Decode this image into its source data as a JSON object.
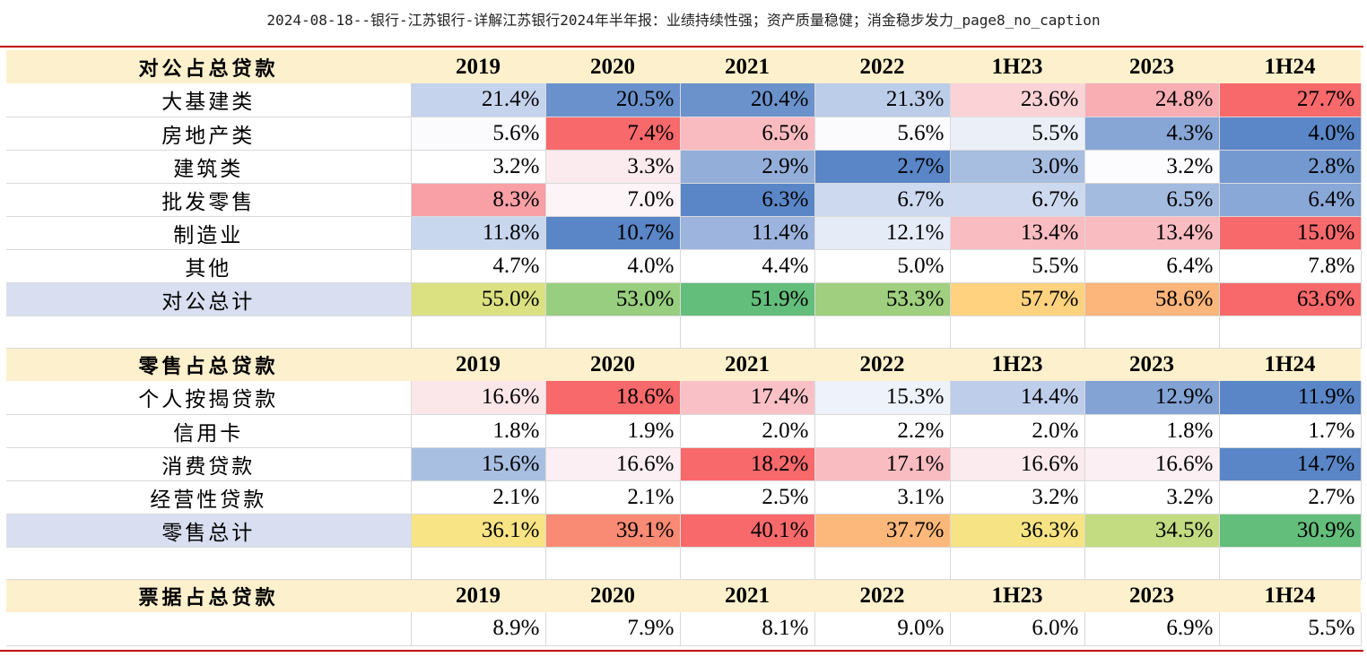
{
  "page_title": "2024-08-18--银行-江苏银行-详解江苏银行2024年半年报：业绩持续性强；资产质量稳健；消金稳步发力_page8_no_caption",
  "years": [
    "2019",
    "2020",
    "2021",
    "2022",
    "1H23",
    "2023",
    "1H24"
  ],
  "sections": [
    {
      "header": "对公占总贷款",
      "rows": [
        {
          "label": "大基建类",
          "values": [
            "21.4%",
            "20.5%",
            "20.4%",
            "21.3%",
            "23.6%",
            "24.8%",
            "27.7%"
          ],
          "colors": [
            "#c5d3ec",
            "#6a91cc",
            "#6c92cc",
            "#bccde9",
            "#fbd3d7",
            "#f8aeb3",
            "#f8696b"
          ]
        },
        {
          "label": "房地产类",
          "values": [
            "5.6%",
            "7.4%",
            "6.5%",
            "5.6%",
            "5.5%",
            "4.3%",
            "4.0%"
          ],
          "colors": [
            "#fbfbfe",
            "#f8696b",
            "#f9bbc0",
            "#fbfbfe",
            "#eaeff8",
            "#87a6d6",
            "#5b86c7"
          ]
        },
        {
          "label": "建筑类",
          "values": [
            "3.2%",
            "3.3%",
            "2.9%",
            "2.7%",
            "3.0%",
            "3.2%",
            "2.8%"
          ],
          "colors": [
            "#ffffff",
            "#fbeaee",
            "#93aed9",
            "#5a86c7",
            "#a8bee1",
            "#fcfcff",
            "#7399d0"
          ]
        },
        {
          "label": "批发零售",
          "values": [
            "8.3%",
            "7.0%",
            "6.3%",
            "6.7%",
            "6.7%",
            "6.5%",
            "6.4%"
          ],
          "colors": [
            "#f8a0a6",
            "#fcf4f7",
            "#5a86c7",
            "#ccd9ef",
            "#ccd9ef",
            "#a4bbe0",
            "#89a7d7"
          ]
        },
        {
          "label": "制造业",
          "values": [
            "11.8%",
            "10.7%",
            "11.4%",
            "12.1%",
            "13.4%",
            "13.4%",
            "15.0%"
          ],
          "colors": [
            "#c8d6ee",
            "#5a86c7",
            "#9db5de",
            "#e6ecf7",
            "#f9bcc1",
            "#f9bcc1",
            "#f8696b"
          ]
        },
        {
          "label": "其他",
          "values": [
            "4.7%",
            "4.0%",
            "4.4%",
            "5.0%",
            "5.5%",
            "6.4%",
            "7.8%"
          ],
          "colors": [
            "#ffffff",
            "#ffffff",
            "#ffffff",
            "#ffffff",
            "#ffffff",
            "#ffffff",
            "#ffffff"
          ]
        }
      ],
      "total": {
        "label": "对公总计",
        "values": [
          "55.0%",
          "53.0%",
          "51.9%",
          "53.3%",
          "57.7%",
          "58.6%",
          "63.6%"
        ],
        "colors": [
          "#dbe081",
          "#98ce7f",
          "#63be7b",
          "#9fcf7f",
          "#fed27f",
          "#fcb57a",
          "#f8696b"
        ]
      }
    },
    {
      "header": "零售占总贷款",
      "rows": [
        {
          "label": "个人按揭贷款",
          "values": [
            "16.6%",
            "18.6%",
            "17.4%",
            "15.3%",
            "14.4%",
            "12.9%",
            "11.9%"
          ],
          "colors": [
            "#fbe6ea",
            "#f8696b",
            "#f9c1c6",
            "#eef2fa",
            "#bdcdea",
            "#83a3d5",
            "#5a86c7"
          ]
        },
        {
          "label": "信用卡",
          "values": [
            "1.8%",
            "1.9%",
            "2.0%",
            "2.2%",
            "2.0%",
            "1.8%",
            "1.7%"
          ],
          "colors": [
            "#ffffff",
            "#ffffff",
            "#ffffff",
            "#ffffff",
            "#ffffff",
            "#ffffff",
            "#ffffff"
          ]
        },
        {
          "label": "消费贷款",
          "values": [
            "15.6%",
            "16.6%",
            "18.2%",
            "17.1%",
            "16.6%",
            "16.6%",
            "14.7%"
          ],
          "colors": [
            "#a9bfe2",
            "#fbeff3",
            "#f8696b",
            "#f9bcc1",
            "#fbeaee",
            "#fbeff3",
            "#5a86c7"
          ]
        },
        {
          "label": "经营性贷款",
          "values": [
            "2.1%",
            "2.1%",
            "2.5%",
            "3.1%",
            "3.2%",
            "3.2%",
            "2.7%"
          ],
          "colors": [
            "#ffffff",
            "#ffffff",
            "#ffffff",
            "#ffffff",
            "#ffffff",
            "#ffffff",
            "#ffffff"
          ]
        }
      ],
      "total": {
        "label": "零售总计",
        "values": [
          "36.1%",
          "39.1%",
          "40.1%",
          "37.7%",
          "36.3%",
          "34.5%",
          "30.9%"
        ],
        "colors": [
          "#f8e484",
          "#f98a73",
          "#f8696b",
          "#fcb77a",
          "#f6e383",
          "#c3db81",
          "#63be7b"
        ]
      }
    },
    {
      "header": "票据占总贷款",
      "rows": [
        {
          "label": "",
          "values": [
            "8.9%",
            "7.9%",
            "8.1%",
            "9.0%",
            "6.0%",
            "6.9%",
            "5.5%"
          ],
          "colors": [
            "#ffffff",
            "#ffffff",
            "#ffffff",
            "#ffffff",
            "#ffffff",
            "#ffffff",
            "#ffffff"
          ]
        }
      ]
    }
  ],
  "colors": {
    "header_bg": "#fdf0cc",
    "total_label_bg": "#d9dff0",
    "rule": "#c00000"
  }
}
